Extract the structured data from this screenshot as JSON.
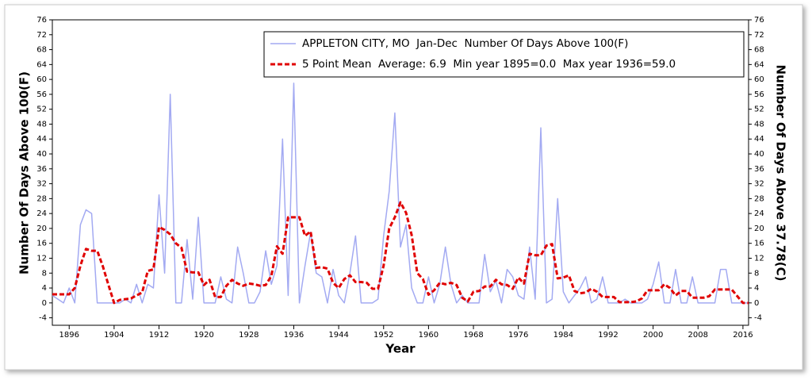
{
  "chart_data": {
    "type": "line",
    "xlabel": "Year",
    "ylabel": "Number Of Days Above 100(F)",
    "y2label": "Number Of Days Above 37.78(C)",
    "xlim": [
      1893,
      2017
    ],
    "xticks": [
      1896,
      1904,
      1912,
      1920,
      1928,
      1936,
      1944,
      1952,
      1960,
      1968,
      1976,
      1984,
      1992,
      2000,
      2008,
      2016
    ],
    "ylim": [
      -6,
      76
    ],
    "yticks": [
      -4,
      0,
      4,
      8,
      12,
      16,
      20,
      24,
      28,
      32,
      36,
      40,
      44,
      48,
      52,
      56,
      60,
      64,
      68,
      72,
      76
    ],
    "y2lim": [
      -6,
      76
    ],
    "y2ticks": [
      -4,
      0,
      4,
      8,
      12,
      16,
      20,
      24,
      28,
      32,
      36,
      40,
      44,
      48,
      52,
      56,
      60,
      64,
      68,
      72,
      76
    ],
    "legend": "upper right",
    "x": [
      1893,
      1894,
      1895,
      1896,
      1897,
      1898,
      1899,
      1900,
      1901,
      1902,
      1903,
      1904,
      1905,
      1906,
      1907,
      1908,
      1909,
      1910,
      1911,
      1912,
      1913,
      1914,
      1915,
      1916,
      1917,
      1918,
      1919,
      1920,
      1921,
      1922,
      1923,
      1924,
      1925,
      1926,
      1927,
      1928,
      1929,
      1930,
      1931,
      1932,
      1933,
      1934,
      1935,
      1936,
      1937,
      1938,
      1939,
      1940,
      1941,
      1942,
      1943,
      1944,
      1945,
      1946,
      1947,
      1948,
      1949,
      1950,
      1951,
      1952,
      1953,
      1954,
      1955,
      1956,
      1957,
      1958,
      1959,
      1960,
      1961,
      1962,
      1963,
      1964,
      1965,
      1966,
      1967,
      1968,
      1969,
      1970,
      1971,
      1972,
      1973,
      1974,
      1975,
      1976,
      1977,
      1978,
      1979,
      1980,
      1981,
      1982,
      1983,
      1984,
      1985,
      1986,
      1987,
      1988,
      1989,
      1990,
      1991,
      1992,
      1993,
      1994,
      1995,
      1996,
      1997,
      1998,
      1999,
      2000,
      2001,
      2002,
      2003,
      2004,
      2005,
      2006,
      2007,
      2008,
      2009,
      2010,
      2011,
      2012,
      2013,
      2014,
      2015,
      2016,
      2017
    ],
    "series": [
      {
        "name": "APPLETON CITY, MO  Jan-Dec  Number Of Days Above 100(F)",
        "color": "#a3aaf2",
        "style": "solid",
        "values": [
          2,
          1,
          0,
          4,
          0,
          21,
          25,
          24,
          0,
          0,
          0,
          0,
          0,
          1,
          0,
          5,
          0,
          5,
          4,
          29,
          8,
          56,
          0,
          0,
          17,
          1,
          23,
          0,
          0,
          0,
          7,
          1,
          0,
          15,
          8,
          0,
          0,
          3,
          14,
          5,
          10,
          44,
          2,
          59,
          0,
          10,
          19,
          8,
          7,
          0,
          9,
          2,
          0,
          8,
          18,
          0,
          0,
          0,
          1,
          18,
          30,
          51,
          15,
          21,
          4,
          0,
          0,
          7,
          0,
          5,
          15,
          5,
          0,
          2,
          0,
          0,
          0,
          13,
          3,
          6,
          0,
          9,
          7,
          2,
          1,
          15,
          1,
          47,
          0,
          1,
          28,
          3,
          0,
          2,
          4,
          7,
          0,
          1,
          7,
          0,
          0,
          0,
          1,
          0,
          0,
          0,
          1,
          5,
          11,
          0,
          0,
          9,
          0,
          0,
          7,
          0,
          0,
          0,
          0,
          9,
          9,
          0,
          0,
          0,
          0
        ]
      },
      {
        "name": "5 Point Mean  Average: 6.9  Min year 1895=0.0  Max year 1936=59.0",
        "color": "#e00000",
        "style": "dashed",
        "values": [
          2.3,
          2.3,
          2.3,
          2.3,
          4,
          10,
          14.5,
          14,
          14,
          9.8,
          4.8,
          0,
          0.8,
          1,
          1.2,
          2,
          2.8,
          8.6,
          9,
          20.4,
          19.6,
          18.4,
          16,
          14.8,
          8.4,
          8.2,
          8.2,
          4.8,
          6.2,
          1.6,
          1.6,
          4.6,
          6.2,
          5.2,
          4.6,
          5.2,
          5,
          4.6,
          4.8,
          7.2,
          15.2,
          13.2,
          23,
          23,
          23,
          18,
          19.2,
          9.4,
          9.6,
          9.2,
          5.4,
          4,
          6.4,
          7.4,
          5.6,
          5.6,
          5.4,
          3.8,
          3.8,
          10,
          20,
          23,
          27,
          24.2,
          18.2,
          8,
          6.4,
          2.2,
          3.4,
          5.4,
          5,
          5.4,
          4.8,
          1.4,
          0.4,
          3,
          3.2,
          4.4,
          4.4,
          6.2,
          5,
          4.8,
          3.8,
          6.8,
          5.2,
          13.2,
          12.8,
          12.8,
          15.4,
          15.8,
          6.6,
          6.8,
          7.4,
          3.2,
          2.6,
          2.8,
          3.8,
          3,
          1.6,
          1.6,
          1.6,
          0.2,
          0.2,
          0.2,
          0.4,
          1.2,
          3.4,
          3.4,
          3.4,
          5,
          4,
          2,
          3.2,
          3.2,
          1.4,
          1.4,
          1.4,
          1.8,
          3.6,
          3.6,
          3.6,
          3.6,
          1.8,
          0,
          0
        ]
      }
    ]
  }
}
